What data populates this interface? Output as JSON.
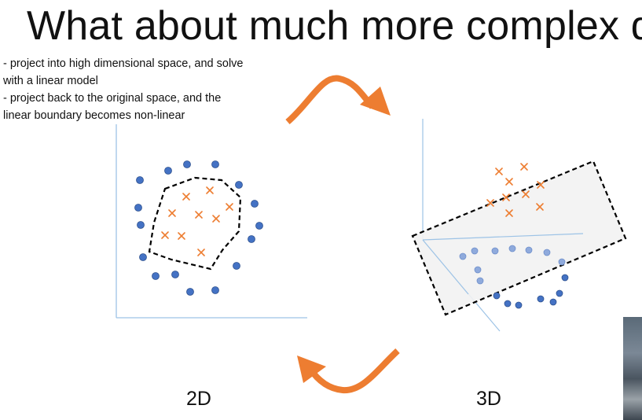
{
  "slide": {
    "title": "What about much more complex d",
    "notes": [
      " - project into high dimensional space, and solve",
      "with a linear model",
      " - project back to the original space, and the",
      "linear boundary becomes non-linear"
    ],
    "label_2d": "2D",
    "label_3d": "3D"
  },
  "colors": {
    "circle_fill": "#4472C4",
    "circle_fill_light": "#8FAADC",
    "cross": "#ED7D31",
    "axis": "#9DC3E6",
    "arrow": "#ED7D31",
    "plane": "#F2F2F2",
    "dashed": "#000000"
  }
}
